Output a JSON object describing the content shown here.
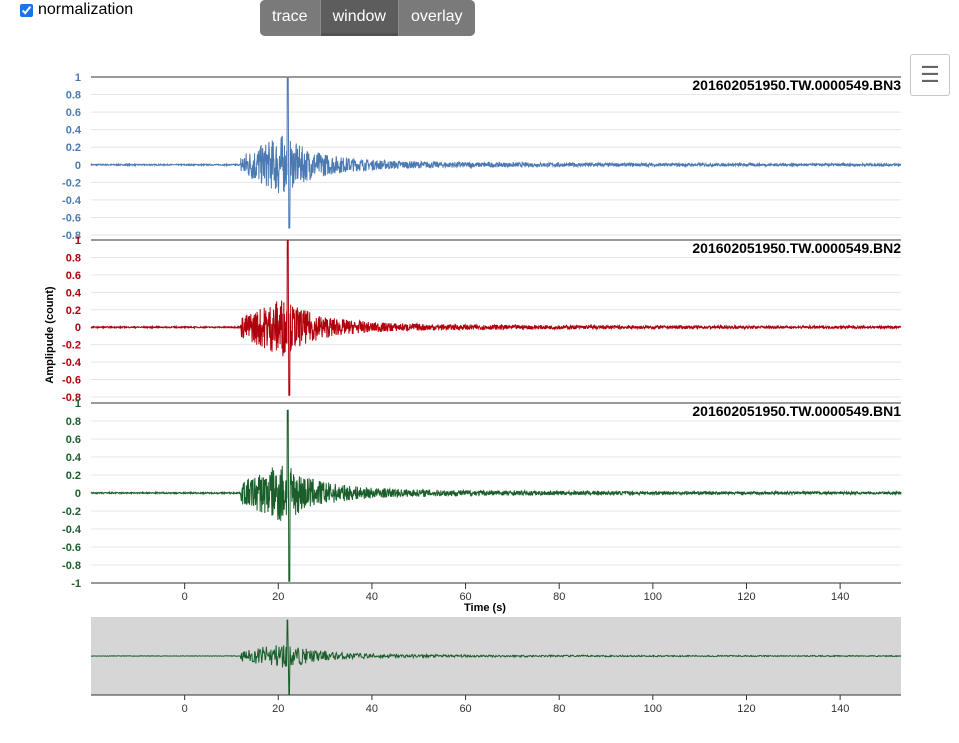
{
  "controls": {
    "normalization_label": "normalization",
    "normalization_checked": true,
    "buttons": [
      {
        "label": "trace",
        "active": false
      },
      {
        "label": "window",
        "active": true
      },
      {
        "label": "overlay",
        "active": false
      }
    ],
    "menu_icon": "hamburger-menu-icon"
  },
  "chart_data": {
    "type": "line",
    "xlabel": "Time (s)",
    "ylabel": "Amplipude (count)",
    "xlim": [
      -20,
      153
    ],
    "x_ticks": [
      0,
      20,
      40,
      60,
      80,
      100,
      120,
      140
    ],
    "grid": true,
    "series": [
      {
        "name": "201602051950.TW.0000549.BN3",
        "color": "#4b7ab3",
        "ylim": [
          -0.8,
          1
        ],
        "y_ticks": [
          1,
          0.8,
          0.6,
          0.4,
          0.2,
          0,
          -0.2,
          -0.4,
          -0.6,
          -0.8
        ],
        "onset_s": 12,
        "peak_s": 22,
        "peak_pos": 1.0,
        "peak_neg": -0.72
      },
      {
        "name": "201602051950.TW.0000549.BN2",
        "color": "#b0000b",
        "ylim": [
          -0.8,
          1
        ],
        "y_ticks": [
          1,
          0.8,
          0.6,
          0.4,
          0.2,
          0,
          -0.2,
          -0.4,
          -0.6,
          -0.8
        ],
        "onset_s": 12,
        "peak_s": 22,
        "peak_pos": 1.0,
        "peak_neg": -0.78
      },
      {
        "name": "201602051950.TW.0000549.BN1",
        "color": "#1a5e2a",
        "ylim": [
          -1,
          1
        ],
        "y_ticks": [
          1,
          0.8,
          0.6,
          0.4,
          0.2,
          0,
          -0.2,
          -0.4,
          -0.6,
          -0.8,
          -1
        ],
        "onset_s": 12,
        "peak_s": 22,
        "peak_pos": 0.92,
        "peak_neg": -0.98
      }
    ],
    "navigator": {
      "series": "201602051950.TW.0000549.BN1",
      "selected_range": [
        -20,
        153
      ],
      "x_ticks": [
        0,
        20,
        40,
        60,
        80,
        100,
        120,
        140
      ]
    }
  }
}
